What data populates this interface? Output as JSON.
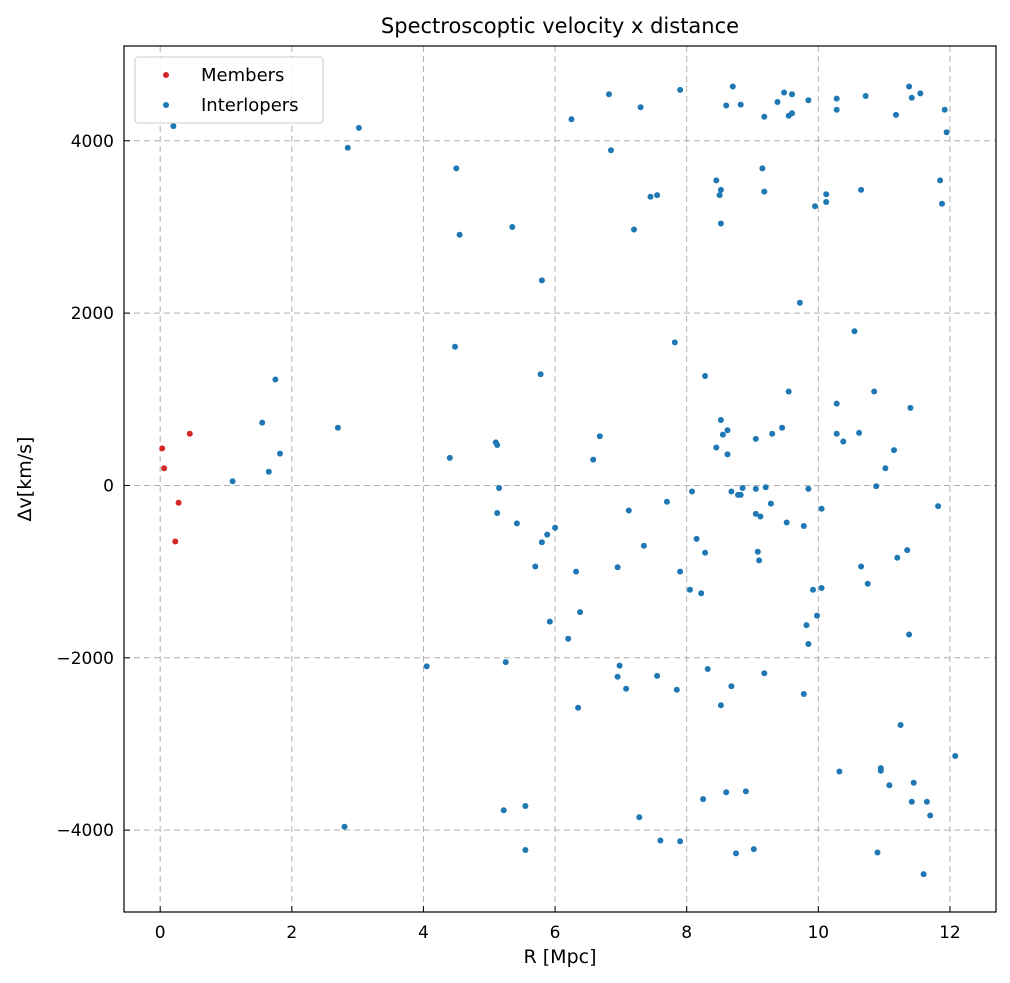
{
  "chart_data": {
    "type": "scatter",
    "title": "Spectroscoptic velocity x distance",
    "xlabel": "R [Mpc]",
    "ylabel": "Δv[km/s]",
    "xlim": [
      -0.55,
      12.7
    ],
    "ylim": [
      -4950,
      5100
    ],
    "xticks": [
      0,
      2,
      4,
      6,
      8,
      10,
      12
    ],
    "yticks": [
      -4000,
      -2000,
      0,
      2000,
      4000
    ],
    "xtick_labels": [
      "0",
      "2",
      "4",
      "6",
      "8",
      "10",
      "12"
    ],
    "ytick_labels": [
      "−4000",
      "−2000",
      "0",
      "2000",
      "4000"
    ],
    "grid": true,
    "legend_position": "top-left",
    "series": [
      {
        "name": "Members",
        "color": "#d62728",
        "points": [
          [
            0.03,
            430
          ],
          [
            0.06,
            200
          ],
          [
            0.28,
            -200
          ],
          [
            0.23,
            -650
          ],
          [
            0.45,
            600
          ]
        ]
      },
      {
        "name": "Interlopers",
        "color": "#1f77b4",
        "points": [
          [
            0.2,
            4170
          ],
          [
            1.1,
            50
          ],
          [
            1.55,
            730
          ],
          [
            1.65,
            160
          ],
          [
            1.75,
            1230
          ],
          [
            1.82,
            370
          ],
          [
            2.7,
            670
          ],
          [
            2.85,
            3920
          ],
          [
            3.02,
            4150
          ],
          [
            2.8,
            -3960
          ],
          [
            4.05,
            -2100
          ],
          [
            4.4,
            320
          ],
          [
            4.48,
            1610
          ],
          [
            4.5,
            3680
          ],
          [
            4.55,
            2910
          ],
          [
            5.1,
            500
          ],
          [
            5.12,
            470
          ],
          [
            5.15,
            -30
          ],
          [
            5.12,
            -320
          ],
          [
            5.22,
            -3770
          ],
          [
            5.25,
            -2050
          ],
          [
            5.35,
            3000
          ],
          [
            5.42,
            -440
          ],
          [
            5.55,
            -3720
          ],
          [
            5.55,
            -4230
          ],
          [
            5.7,
            -940
          ],
          [
            5.78,
            1290
          ],
          [
            5.8,
            2380
          ],
          [
            5.8,
            -660
          ],
          [
            5.88,
            -570
          ],
          [
            5.92,
            -1580
          ],
          [
            6.0,
            -490
          ],
          [
            6.2,
            -1780
          ],
          [
            6.25,
            4250
          ],
          [
            6.32,
            -1000
          ],
          [
            6.35,
            -2580
          ],
          [
            6.38,
            -1470
          ],
          [
            6.58,
            300
          ],
          [
            6.68,
            570
          ],
          [
            6.82,
            4540
          ],
          [
            6.85,
            3890
          ],
          [
            6.95,
            -950
          ],
          [
            6.95,
            -2220
          ],
          [
            6.98,
            -2090
          ],
          [
            7.08,
            -2360
          ],
          [
            7.12,
            -290
          ],
          [
            7.2,
            2970
          ],
          [
            7.28,
            -3850
          ],
          [
            7.3,
            4390
          ],
          [
            7.35,
            -700
          ],
          [
            7.45,
            3350
          ],
          [
            7.55,
            3370
          ],
          [
            7.55,
            -2210
          ],
          [
            7.6,
            -4120
          ],
          [
            7.7,
            -190
          ],
          [
            7.82,
            1660
          ],
          [
            7.85,
            -2370
          ],
          [
            7.9,
            4590
          ],
          [
            7.9,
            -1000
          ],
          [
            7.9,
            -4130
          ],
          [
            8.05,
            -1210
          ],
          [
            8.08,
            -70
          ],
          [
            8.15,
            -620
          ],
          [
            8.22,
            -1250
          ],
          [
            8.28,
            1270
          ],
          [
            8.25,
            -3640
          ],
          [
            8.28,
            -780
          ],
          [
            8.32,
            -2130
          ],
          [
            8.45,
            440
          ],
          [
            8.45,
            3540
          ],
          [
            8.5,
            3370
          ],
          [
            8.52,
            760
          ],
          [
            8.52,
            3430
          ],
          [
            8.55,
            590
          ],
          [
            8.52,
            3040
          ],
          [
            8.52,
            -2550
          ],
          [
            8.6,
            4410
          ],
          [
            8.62,
            640
          ],
          [
            8.62,
            360
          ],
          [
            8.6,
            -3560
          ],
          [
            8.68,
            -70
          ],
          [
            8.68,
            -2330
          ],
          [
            8.7,
            4630
          ],
          [
            8.75,
            -4270
          ],
          [
            8.78,
            -110
          ],
          [
            8.82,
            -110
          ],
          [
            8.82,
            4420
          ],
          [
            8.85,
            -30
          ],
          [
            8.9,
            -3550
          ],
          [
            9.02,
            -4220
          ],
          [
            9.05,
            -330
          ],
          [
            9.05,
            540
          ],
          [
            9.05,
            -40
          ],
          [
            9.08,
            -770
          ],
          [
            9.1,
            -870
          ],
          [
            9.12,
            -360
          ],
          [
            9.15,
            3680
          ],
          [
            9.18,
            4280
          ],
          [
            9.18,
            3410
          ],
          [
            9.18,
            -2180
          ],
          [
            9.2,
            -20
          ],
          [
            9.28,
            -210
          ],
          [
            9.3,
            600
          ],
          [
            9.38,
            4450
          ],
          [
            9.45,
            670
          ],
          [
            9.48,
            4560
          ],
          [
            9.52,
            -430
          ],
          [
            9.55,
            4290
          ],
          [
            9.55,
            1090
          ],
          [
            9.6,
            4540
          ],
          [
            9.6,
            4320
          ],
          [
            9.72,
            2120
          ],
          [
            9.78,
            -470
          ],
          [
            9.78,
            -2420
          ],
          [
            9.85,
            4470
          ],
          [
            9.85,
            -40
          ],
          [
            9.82,
            -1620
          ],
          [
            9.85,
            -1840
          ],
          [
            9.92,
            -1210
          ],
          [
            9.95,
            3240
          ],
          [
            9.98,
            -1510
          ],
          [
            10.05,
            -270
          ],
          [
            10.05,
            -1190
          ],
          [
            10.12,
            3380
          ],
          [
            10.12,
            3290
          ],
          [
            10.28,
            4490
          ],
          [
            10.28,
            4360
          ],
          [
            10.28,
            600
          ],
          [
            10.28,
            950
          ],
          [
            10.32,
            -3320
          ],
          [
            10.38,
            510
          ],
          [
            10.55,
            1790
          ],
          [
            10.62,
            610
          ],
          [
            10.65,
            3430
          ],
          [
            10.65,
            -940
          ],
          [
            10.72,
            4520
          ],
          [
            10.75,
            -1140
          ],
          [
            10.85,
            1090
          ],
          [
            10.88,
            -10
          ],
          [
            10.9,
            -4260
          ],
          [
            10.95,
            -3280
          ],
          [
            10.95,
            -3310
          ],
          [
            11.02,
            200
          ],
          [
            11.08,
            -3480
          ],
          [
            11.15,
            410
          ],
          [
            11.18,
            4300
          ],
          [
            11.2,
            -840
          ],
          [
            11.25,
            -2780
          ],
          [
            11.35,
            -750
          ],
          [
            11.38,
            4630
          ],
          [
            11.38,
            -1730
          ],
          [
            11.4,
            900
          ],
          [
            11.42,
            4500
          ],
          [
            11.42,
            -3670
          ],
          [
            11.45,
            -3450
          ],
          [
            11.55,
            4550
          ],
          [
            11.65,
            -3670
          ],
          [
            11.7,
            -3830
          ],
          [
            11.82,
            -240
          ],
          [
            11.85,
            3540
          ],
          [
            11.88,
            3270
          ],
          [
            11.92,
            4360
          ],
          [
            11.95,
            4100
          ],
          [
            11.6,
            -4510
          ],
          [
            12.08,
            -3140
          ]
        ]
      }
    ]
  },
  "legend": {
    "members_label": "Members",
    "interlopers_label": "Interlopers"
  }
}
